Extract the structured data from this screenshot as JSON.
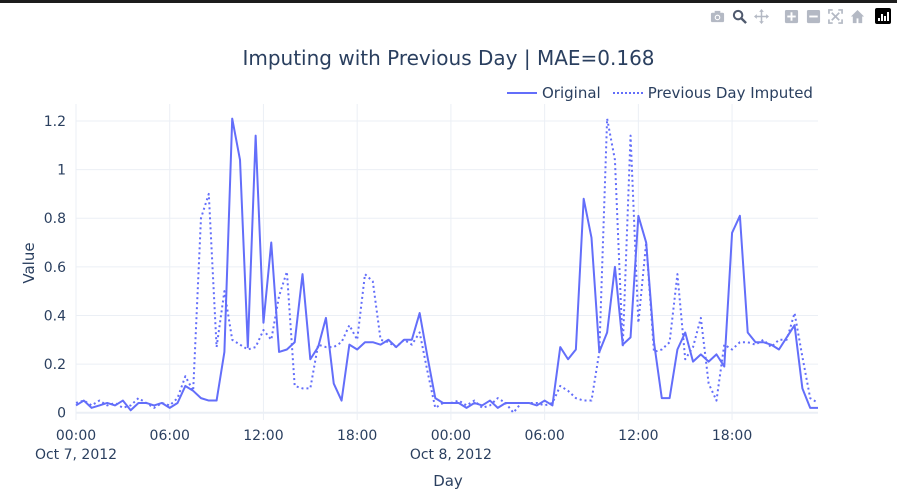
{
  "modebar": {
    "icons": [
      "camera-icon",
      "zoom-icon",
      "pan-icon",
      "zoom-in-icon",
      "zoom-out-icon",
      "autoscale-icon",
      "reset-axes-icon",
      "plotly-logo-icon"
    ]
  },
  "colors": {
    "series": "#636efa",
    "grid": "#ebeff5",
    "text": "#2a3f5f"
  },
  "chart_data": {
    "type": "line",
    "title": "Imputing with Previous Day | MAE=0.168",
    "xlabel": "Day",
    "ylabel": "Value",
    "x_start": "2012-10-07 00:00",
    "x_step_hours": 0.5,
    "xlim": [
      "2012-10-07 00:00",
      "2012-10-08 23:30"
    ],
    "ylim": [
      -0.03,
      1.27
    ],
    "grid": true,
    "legend_position": "top-right",
    "x_tick_labels": [
      "00:00",
      "06:00",
      "12:00",
      "18:00",
      "00:00",
      "06:00",
      "12:00",
      "18:00"
    ],
    "x_date_labels": [
      "Oct 7, 2012",
      "Oct 8, 2012"
    ],
    "y_tick_labels": [
      "0",
      "0.2",
      "0.4",
      "0.6",
      "0.8",
      "1",
      "1.2"
    ],
    "y_ticks": [
      0,
      0.2,
      0.4,
      0.6,
      0.8,
      1.0,
      1.2
    ],
    "series": [
      {
        "name": "Original",
        "dash": "solid",
        "values": [
          0.03,
          0.05,
          0.02,
          0.03,
          0.04,
          0.03,
          0.05,
          0.01,
          0.04,
          0.04,
          0.03,
          0.04,
          0.02,
          0.04,
          0.11,
          0.09,
          0.06,
          0.05,
          0.05,
          0.25,
          1.21,
          1.04,
          0.27,
          1.14,
          0.37,
          0.7,
          0.25,
          0.26,
          0.29,
          0.57,
          0.22,
          0.27,
          0.39,
          0.12,
          0.05,
          0.28,
          0.26,
          0.29,
          0.29,
          0.28,
          0.3,
          0.27,
          0.3,
          0.3,
          0.41,
          0.23,
          0.06,
          0.04,
          0.04,
          0.04,
          0.02,
          0.04,
          0.03,
          0.05,
          0.02,
          0.04,
          0.04,
          0.04,
          0.04,
          0.03,
          0.05,
          0.03,
          0.27,
          0.22,
          0.26,
          0.88,
          0.72,
          0.25,
          0.33,
          0.6,
          0.28,
          0.31,
          0.81,
          0.7,
          0.29,
          0.06,
          0.06,
          0.26,
          0.33,
          0.21,
          0.24,
          0.21,
          0.24,
          0.19,
          0.74,
          0.81,
          0.33,
          0.29,
          0.29,
          0.28,
          0.26,
          0.31,
          0.36,
          0.1,
          0.02,
          0.02
        ]
      },
      {
        "name": "Previous Day Imputed",
        "dash": "dot",
        "values": [
          0.04,
          0.05,
          0.03,
          0.05,
          0.03,
          0.04,
          0.02,
          0.03,
          0.06,
          0.04,
          0.02,
          0.04,
          0.03,
          0.06,
          0.15,
          0.09,
          0.8,
          0.9,
          0.27,
          0.5,
          0.3,
          0.28,
          0.26,
          0.27,
          0.34,
          0.3,
          0.48,
          0.58,
          0.11,
          0.1,
          0.1,
          0.28,
          0.27,
          0.27,
          0.29,
          0.36,
          0.3,
          0.57,
          0.54,
          0.3,
          0.29,
          0.27,
          0.3,
          0.28,
          0.33,
          0.17,
          0.02,
          0.04,
          0.04,
          0.05,
          0.03,
          0.05,
          0.02,
          0.03,
          0.06,
          0.04,
          0.0,
          0.04,
          0.04,
          0.04,
          0.03,
          0.04,
          0.11,
          0.09,
          0.06,
          0.05,
          0.05,
          0.25,
          1.21,
          1.04,
          0.27,
          1.14,
          0.37,
          0.7,
          0.25,
          0.26,
          0.29,
          0.57,
          0.22,
          0.27,
          0.39,
          0.12,
          0.05,
          0.28,
          0.26,
          0.29,
          0.29,
          0.28,
          0.3,
          0.27,
          0.3,
          0.3,
          0.41,
          0.23,
          0.06,
          0.04
        ]
      }
    ]
  }
}
